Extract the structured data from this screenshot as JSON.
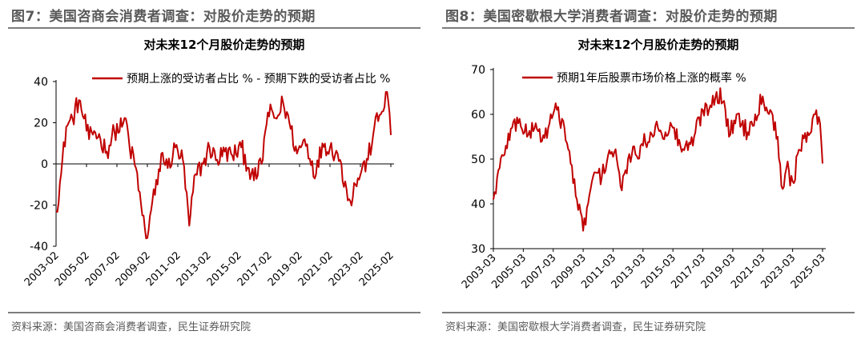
{
  "left": {
    "figure_title": "图7：美国咨商会消费者调查：对股价走势的预期",
    "source": "资料来源：美国咨商会消费者调查，民生证券研究院"
  },
  "right": {
    "figure_title": "图8：美国密歇根大学消费者调查：对股价走势的预期",
    "source": "资料来源：美国密歇根大学消费者调查，民生证券研究院"
  },
  "colors": {
    "line": "#c00000",
    "rule": "#7d7d7d"
  },
  "chart_data": [
    {
      "type": "line",
      "title": "对未来12个月股价走势的预期",
      "series": [
        {
          "name": "预期上涨的受访者占比 % - 预期下跌的受访者占比 %",
          "keypoints": [
            [
              "2003-02",
              -23
            ],
            [
              "2003-06",
              -5
            ],
            [
              "2003-10",
              18
            ],
            [
              "2004-03",
              22
            ],
            [
              "2004-08",
              31
            ],
            [
              "2004-12",
              22
            ],
            [
              "2005-04",
              12
            ],
            [
              "2005-08",
              16
            ],
            [
              "2006-01",
              12
            ],
            [
              "2006-06",
              6
            ],
            [
              "2006-12",
              16
            ],
            [
              "2007-06",
              18
            ],
            [
              "2007-09",
              22
            ],
            [
              "2007-12",
              8
            ],
            [
              "2008-05",
              -2
            ],
            [
              "2008-10",
              -25
            ],
            [
              "2009-02",
              -36
            ],
            [
              "2009-06",
              -18
            ],
            [
              "2009-10",
              -10
            ],
            [
              "2010-01",
              5
            ],
            [
              "2010-06",
              -2
            ],
            [
              "2010-12",
              8
            ],
            [
              "2011-06",
              2
            ],
            [
              "2011-11",
              -30
            ],
            [
              "2012-04",
              -5
            ],
            [
              "2012-10",
              0
            ],
            [
              "2013-03",
              8
            ],
            [
              "2013-09",
              2
            ],
            [
              "2014-03",
              6
            ],
            [
              "2014-09",
              4
            ],
            [
              "2015-04",
              8
            ],
            [
              "2015-10",
              -2
            ],
            [
              "2016-02",
              -8
            ],
            [
              "2016-08",
              0
            ],
            [
              "2017-01",
              25
            ],
            [
              "2017-08",
              22
            ],
            [
              "2018-01",
              30
            ],
            [
              "2018-06",
              20
            ],
            [
              "2018-12",
              5
            ],
            [
              "2019-06",
              12
            ],
            [
              "2020-03",
              -5
            ],
            [
              "2020-08",
              10
            ],
            [
              "2021-02",
              8
            ],
            [
              "2021-08",
              5
            ],
            [
              "2022-03",
              -12
            ],
            [
              "2022-06",
              -18
            ],
            [
              "2022-10",
              -10
            ],
            [
              "2023-03",
              -3
            ],
            [
              "2023-08",
              2
            ],
            [
              "2024-01",
              18
            ],
            [
              "2024-06",
              24
            ],
            [
              "2024-11",
              35
            ],
            [
              "2025-02",
              14
            ]
          ]
        }
      ],
      "x_ticks": [
        "2003-02",
        "2005-02",
        "2007-02",
        "2009-02",
        "2011-02",
        "2013-02",
        "2015-02",
        "2017-02",
        "2019-02",
        "2021-02",
        "2023-02",
        "2025-02"
      ],
      "y_ticks": [
        -40,
        -20,
        0,
        20,
        40
      ],
      "ylim": [
        -40,
        40
      ],
      "xlim": [
        "2003-02",
        "2025-02"
      ],
      "legend_position": "top-right",
      "grid": false
    },
    {
      "type": "line",
      "title": "对未来12个月股价走势的预期",
      "series": [
        {
          "name": "预期1年后股票市场价格上涨的概率 %",
          "keypoints": [
            [
              "2003-03",
              41
            ],
            [
              "2003-08",
              48
            ],
            [
              "2004-01",
              53
            ],
            [
              "2004-06",
              57
            ],
            [
              "2004-12",
              59
            ],
            [
              "2005-06",
              55
            ],
            [
              "2006-01",
              58
            ],
            [
              "2006-06",
              54
            ],
            [
              "2006-12",
              58
            ],
            [
              "2007-06",
              61
            ],
            [
              "2007-12",
              57
            ],
            [
              "2008-05",
              49
            ],
            [
              "2008-10",
              41
            ],
            [
              "2009-03",
              34
            ],
            [
              "2009-08",
              42
            ],
            [
              "2010-01",
              47
            ],
            [
              "2010-06",
              46
            ],
            [
              "2010-12",
              52
            ],
            [
              "2011-06",
              50
            ],
            [
              "2011-10",
              43
            ],
            [
              "2012-03",
              50
            ],
            [
              "2012-09",
              51
            ],
            [
              "2013-03",
              53
            ],
            [
              "2013-09",
              56
            ],
            [
              "2014-03",
              57
            ],
            [
              "2014-09",
              56
            ],
            [
              "2015-03",
              57
            ],
            [
              "2015-09",
              53
            ],
            [
              "2016-03",
              52
            ],
            [
              "2016-09",
              56
            ],
            [
              "2017-03",
              61
            ],
            [
              "2017-09",
              62
            ],
            [
              "2018-02",
              65
            ],
            [
              "2018-08",
              63
            ],
            [
              "2018-12",
              55
            ],
            [
              "2019-06",
              60
            ],
            [
              "2020-03",
              56
            ],
            [
              "2020-09",
              60
            ],
            [
              "2021-03",
              64
            ],
            [
              "2021-09",
              61
            ],
            [
              "2022-03",
              55
            ],
            [
              "2022-06",
              44
            ],
            [
              "2022-10",
              48
            ],
            [
              "2023-03",
              45
            ],
            [
              "2023-09",
              52
            ],
            [
              "2024-03",
              56
            ],
            [
              "2024-09",
              60
            ],
            [
              "2025-01",
              58
            ],
            [
              "2025-03",
              49
            ]
          ]
        }
      ],
      "x_ticks": [
        "2003-03",
        "2005-03",
        "2007-03",
        "2009-03",
        "2011-03",
        "2013-03",
        "2015-03",
        "2017-03",
        "2019-03",
        "2021-03",
        "2023-03",
        "2025-03"
      ],
      "y_ticks": [
        30,
        40,
        50,
        60,
        70
      ],
      "ylim": [
        30,
        70
      ],
      "xlim": [
        "2003-03",
        "2025-03"
      ],
      "legend_position": "top-right",
      "grid": false
    }
  ]
}
